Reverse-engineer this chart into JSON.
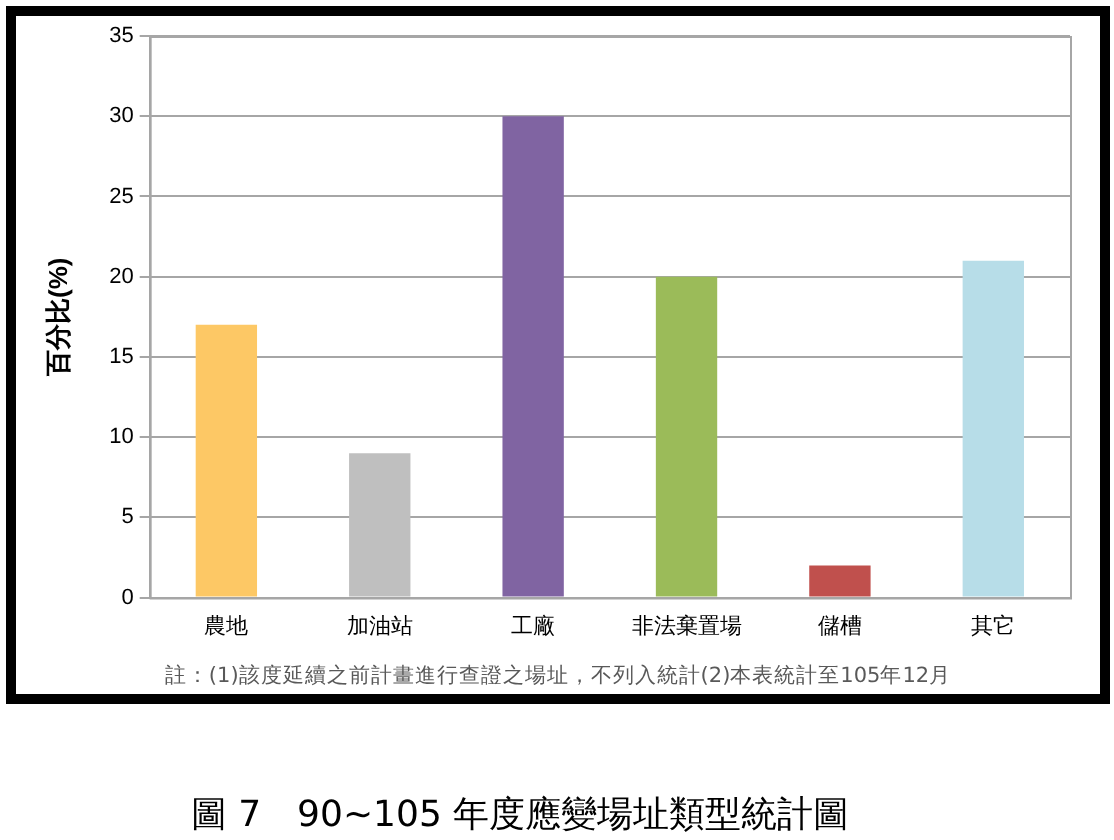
{
  "chart_data": {
    "type": "bar",
    "title": "圖 7　90~105 年度應變場址類型統計圖",
    "ylabel": "百分比(%)",
    "categories": [
      "農地",
      "加油站",
      "工廠",
      "非法棄置場",
      "儲槽",
      "其它"
    ],
    "values": [
      17,
      9,
      30,
      20,
      2,
      21
    ],
    "colors": [
      "#fdc865",
      "#bfbfbf",
      "#8064a2",
      "#9bbb59",
      "#c0504d",
      "#b7dde8"
    ],
    "ylim": [
      0,
      35
    ],
    "yticks": [
      0,
      5,
      10,
      15,
      20,
      25,
      30,
      35
    ],
    "grid": "y",
    "legend": false,
    "annotations": [
      "註：(1)該度延續之前計畫進行查證之場址，不列入統計(2)本表統計至105年12月"
    ]
  }
}
